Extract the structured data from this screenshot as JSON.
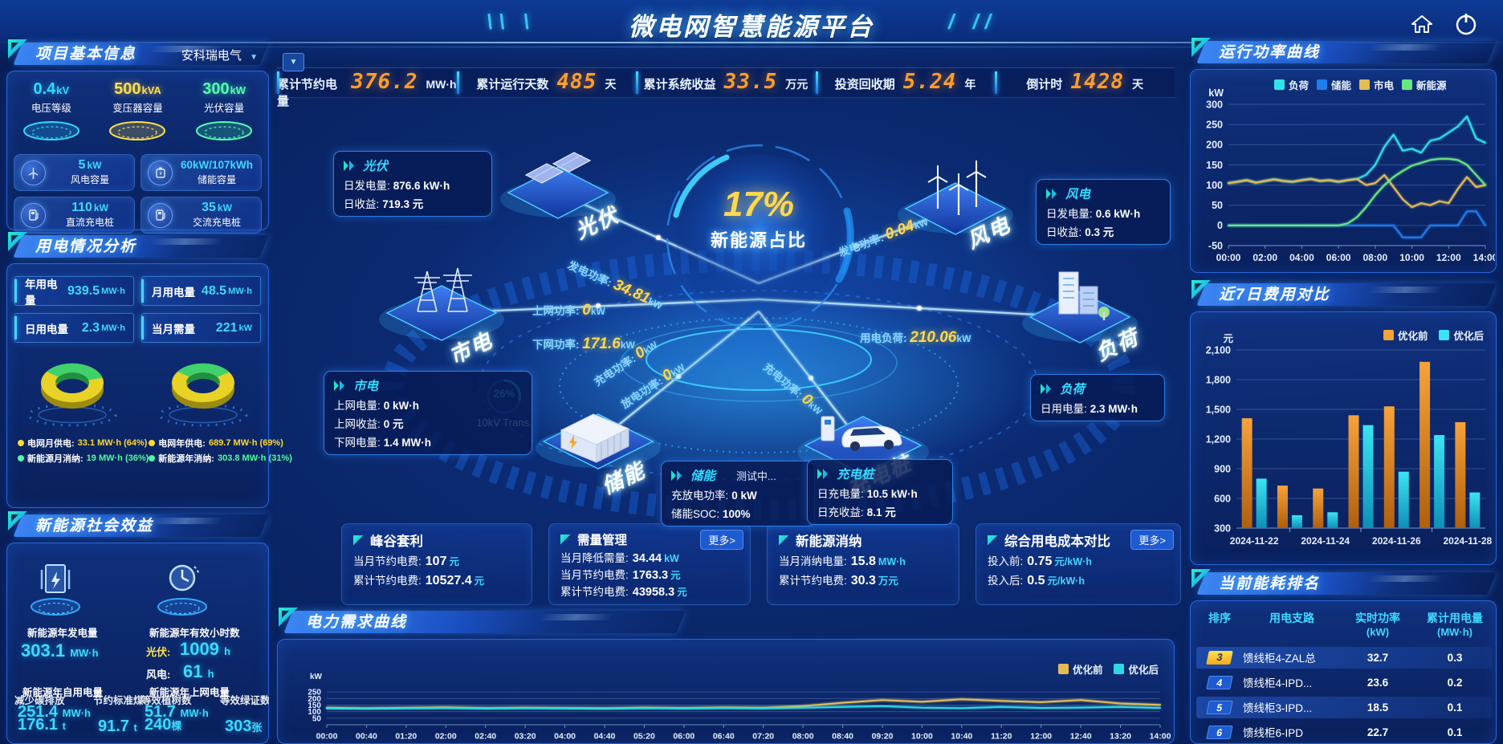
{
  "header": {
    "title": "微电网智慧能源平台",
    "deco_left": "\\\\ \\",
    "deco_right": "/ //"
  },
  "topbar": {
    "collapse_icon": "▼",
    "stats": [
      {
        "label": "累计节约电量",
        "value": "376.2",
        "unit": "MW·h"
      },
      {
        "label": "累计运行天数",
        "value": "485",
        "unit": "天"
      },
      {
        "label": "累计系统收益",
        "value": "33.5",
        "unit": "万元"
      },
      {
        "label": "投资回收期",
        "value": "5.24",
        "unit": "年"
      },
      {
        "label": "倒计时",
        "value": "1428",
        "unit": "天"
      }
    ]
  },
  "project": {
    "title": "项目基本信息",
    "company": "安科瑞电气",
    "pedestals": [
      {
        "value": "0.4",
        "unit": "kV",
        "label": "电压等级",
        "color": "#35d9ff"
      },
      {
        "value": "500",
        "unit": "kVA",
        "label": "变压器容量",
        "color": "#ffe14d"
      },
      {
        "value": "300",
        "unit": "kW",
        "label": "光伏容量",
        "color": "#59ffb0"
      }
    ],
    "cards": [
      {
        "value": "5",
        "unit": "kW",
        "label": "风电容量"
      },
      {
        "value": "60kW/107kWh",
        "unit": "",
        "label": "储能容量"
      },
      {
        "value": "110",
        "unit": "kW",
        "label": "直流充电桩"
      },
      {
        "value": "35",
        "unit": "kW",
        "label": "交流充电桩"
      }
    ]
  },
  "usage": {
    "title": "用电情况分析",
    "stats": [
      {
        "label": "年用电量",
        "value": "939.5",
        "unit": "MW·h"
      },
      {
        "label": "月用电量",
        "value": "48.5",
        "unit": "MW·h"
      },
      {
        "label": "日用电量",
        "value": "2.3",
        "unit": "MW·h"
      },
      {
        "label": "当月需量",
        "value": "221",
        "unit": "kW"
      }
    ],
    "legend": [
      {
        "label": "电网月供电:",
        "value": "33.1 MW·h (64%)",
        "color": "#ffd92b"
      },
      {
        "label": "新能源月消纳:",
        "value": "19 MW·h (36%)",
        "color": "#4dffa1"
      },
      {
        "label": "电网年供电:",
        "value": "689.7 MW·h (69%)",
        "color": "#ffd92b"
      },
      {
        "label": "新能源年消纳:",
        "value": "303.8 MW·h (31%)",
        "color": "#4dffa1"
      }
    ]
  },
  "social": {
    "title": "新能源社会效益",
    "gen_label": "新能源年发电量",
    "gen_value": "303.1",
    "gen_unit": "MW·h",
    "hours_label": "新能源年有效小时数",
    "pv_k": "光伏:",
    "pv_v": "1009",
    "pv_u": "h",
    "wind_k": "风电:",
    "wind_v": "61",
    "wind_u": "h",
    "left_overlay": {
      "label1": "新能源年自用电量",
      "value1": "251.4",
      "unit1": "MW·h",
      "label2": "减少碳排放",
      "value2": "176.1",
      "unit2": "t",
      "label3": "节约标准煤",
      "value3": "91.7",
      "unit3": "t"
    },
    "right_overlay": {
      "label1": "新能源年上网电量",
      "value1": "51.7",
      "unit1": "MW·h",
      "label2": "等效植树数",
      "value2": "240",
      "unit2": "棵",
      "label3": "等效绿证数",
      "value3": "303",
      "unit3": "张"
    }
  },
  "diagram": {
    "center_pct": "17%",
    "center_label": "新能源占比",
    "gauge_value": "26%",
    "gauge_label": "10kV Trans.",
    "nodes": [
      {
        "name": "光伏"
      },
      {
        "name": "风电"
      },
      {
        "name": "市电"
      },
      {
        "name": "负荷"
      },
      {
        "name": "储能"
      },
      {
        "name": "充电桩"
      }
    ],
    "flows": [
      {
        "label": "发电功率:",
        "value": "34.81",
        "unit": "kW"
      },
      {
        "label": "上网功率:",
        "value": "0",
        "unit": "kW"
      },
      {
        "label": "下网功率:",
        "value": "171.6",
        "unit": "kW"
      },
      {
        "label": "发电功率:",
        "value": "0.04",
        "unit": "kW"
      },
      {
        "label": "用电负荷:",
        "value": "210.06",
        "unit": "kW"
      },
      {
        "label": "充电功率:",
        "value": "0",
        "unit": "kW"
      },
      {
        "label": "放电功率:",
        "value": "0",
        "unit": "kW"
      },
      {
        "label": "充电功率:",
        "value": "0",
        "unit": "kW"
      }
    ],
    "boxes": {
      "pv": {
        "title": "光伏",
        "lines": [
          {
            "k": "日发电量:",
            "v": "876.6 kW·h"
          },
          {
            "k": "日收益:",
            "v": "719.3 元"
          }
        ]
      },
      "wind": {
        "title": "风电",
        "lines": [
          {
            "k": "日发电量:",
            "v": "0.6 kW·h"
          },
          {
            "k": "日收益:",
            "v": "0.3 元"
          }
        ]
      },
      "grid": {
        "title": "市电",
        "lines": [
          {
            "k": "上网电量:",
            "v": "0 kW·h"
          },
          {
            "k": "上网收益:",
            "v": "0 元"
          },
          {
            "k": "下网电量:",
            "v": "1.4 MW·h"
          }
        ]
      },
      "load": {
        "title": "负荷",
        "lines": [
          {
            "k": "日用电量:",
            "v": "2.3 MW·h"
          }
        ]
      },
      "storage": {
        "title": "储能",
        "badge": "测试中...",
        "lines": [
          {
            "k": "充放电功率:",
            "v": "0 kW"
          },
          {
            "k": "储能SOC:",
            "v": "100%"
          }
        ]
      },
      "charger": {
        "title": "充电桩",
        "lines": [
          {
            "k": "日充电量:",
            "v": "10.5 kW·h"
          },
          {
            "k": "日充收益:",
            "v": "8.1 元"
          }
        ]
      }
    }
  },
  "mini_panels": [
    {
      "title": "峰谷套利",
      "more": "",
      "lines": [
        {
          "k": "当月节约电费:",
          "v": "107",
          "u": "元"
        },
        {
          "k": "累计节约电费:",
          "v": "10527.4",
          "u": "元"
        }
      ]
    },
    {
      "title": "需量管理",
      "more": "更多>",
      "lines": [
        {
          "k": "当月降低需量:",
          "v": "34.44",
          "u": "kW"
        },
        {
          "k": "当月节约电费:",
          "v": "1763.3",
          "u": "元"
        },
        {
          "k": "累计节约电费:",
          "v": "43958.3",
          "u": "元"
        }
      ]
    },
    {
      "title": "新能源消纳",
      "more": "",
      "lines": [
        {
          "k": "当月消纳电量:",
          "v": "15.8",
          "u": "MW·h"
        },
        {
          "k": "累计节约电费:",
          "v": "30.3",
          "u": "万元"
        }
      ]
    },
    {
      "title": "综合用电成本对比",
      "more": "更多>",
      "lines": [
        {
          "k": "投入前:",
          "v": "0.75",
          "u": "元/kW·h"
        },
        {
          "k": "投入后:",
          "v": "0.5",
          "u": "元/kW·h"
        }
      ]
    }
  ],
  "ranking": {
    "title": "当前能耗排名",
    "headers": [
      {
        "t": "排序",
        "s": ""
      },
      {
        "t": "用电支路",
        "s": ""
      },
      {
        "t": "实时功率",
        "s": "(kW)"
      },
      {
        "t": "累计用电量",
        "s": "(MW·h)"
      }
    ],
    "rows": [
      {
        "rank": "3",
        "style": "gold",
        "branch": "馈线柜4-ZAL总",
        "power": "32.7",
        "energy": "0.3",
        "highlight": true
      },
      {
        "rank": "4",
        "style": "blue",
        "branch": "馈线柜4-IPD...",
        "power": "23.6",
        "energy": "0.2",
        "highlight": false
      },
      {
        "rank": "5",
        "style": "blue",
        "branch": "馈线柜3-IPD...",
        "power": "18.5",
        "energy": "0.1",
        "highlight": true
      },
      {
        "rank": "6",
        "style": "blue",
        "branch": "馈线柜6-IPD",
        "power": "22.7",
        "energy": "0.1",
        "highlight": false
      }
    ]
  },
  "chart_data": [
    {
      "id": "power_curve",
      "type": "line",
      "title": "运行功率曲线",
      "ylabel": "kW",
      "ylim": [
        -50,
        300
      ],
      "yticks": [
        300,
        250,
        200,
        150,
        100,
        50,
        0,
        -50
      ],
      "x_labels": [
        "00:00",
        "02:00",
        "04:00",
        "06:00",
        "08:00",
        "10:00",
        "12:00",
        "14:00"
      ],
      "legend_position": "top",
      "grid": true,
      "series": [
        {
          "name": "负荷",
          "color": "#2fe3ea",
          "values": [
            105,
            108,
            112,
            106,
            110,
            114,
            110,
            108,
            112,
            115,
            110,
            112,
            108,
            112,
            115,
            125,
            150,
            195,
            225,
            185,
            190,
            180,
            210,
            215,
            230,
            245,
            270,
            215,
            205
          ]
        },
        {
          "name": "储能",
          "color": "#1f7df0",
          "values": [
            0,
            0,
            0,
            0,
            0,
            0,
            0,
            0,
            0,
            0,
            0,
            0,
            0,
            0,
            0,
            0,
            0,
            0,
            0,
            -30,
            -30,
            -30,
            0,
            0,
            0,
            0,
            35,
            35,
            0
          ]
        },
        {
          "name": "市电",
          "color": "#e3bc55",
          "values": [
            105,
            108,
            112,
            106,
            110,
            114,
            110,
            108,
            112,
            115,
            110,
            112,
            108,
            112,
            115,
            100,
            105,
            125,
            95,
            65,
            45,
            55,
            50,
            60,
            55,
            90,
            120,
            95,
            100
          ]
        },
        {
          "name": "新能源",
          "color": "#68e87f",
          "values": [
            0,
            0,
            0,
            0,
            0,
            0,
            0,
            0,
            0,
            0,
            0,
            0,
            0,
            5,
            20,
            45,
            75,
            100,
            120,
            135,
            148,
            155,
            162,
            165,
            165,
            162,
            150,
            125,
            100
          ]
        }
      ]
    },
    {
      "id": "cost7",
      "type": "bar",
      "title": "近7日费用对比",
      "ylabel": "元",
      "ylim": [
        300,
        2100
      ],
      "yticks": [
        2100,
        1800,
        1500,
        1200,
        900,
        600,
        300
      ],
      "categories": [
        "2024-11-22",
        "2024-11-23",
        "2024-11-24",
        "2024-11-25",
        "2024-11-26",
        "2024-11-27",
        "2024-11-28"
      ],
      "x_tick_labels": [
        "2024-11-22",
        "2024-11-24",
        "2024-11-26",
        "2024-11-28"
      ],
      "legend_position": "top-right",
      "grid": true,
      "series": [
        {
          "name": "优化前",
          "color": "#f7a23a",
          "color2": "#b05f0e",
          "values": [
            1410,
            730,
            700,
            1440,
            1530,
            1980,
            1370
          ]
        },
        {
          "name": "优化后",
          "color": "#3ae4f2",
          "color2": "#0e8fb8",
          "values": [
            800,
            430,
            460,
            1340,
            870,
            1240,
            660
          ]
        }
      ]
    },
    {
      "id": "demand",
      "type": "line",
      "title": "电力需求曲线",
      "ylabel": "kW",
      "ylim": [
        0,
        300
      ],
      "yticks": [
        250,
        200,
        150,
        100,
        50
      ],
      "x_labels": [
        "00:00",
        "00:40",
        "01:20",
        "02:00",
        "02:40",
        "03:20",
        "04:00",
        "04:40",
        "05:20",
        "06:00",
        "06:40",
        "07:20",
        "08:00",
        "08:40",
        "09:20",
        "10:00",
        "10:40",
        "11:20",
        "12:00",
        "12:40",
        "13:20",
        "14:00"
      ],
      "legend_position": "top-right",
      "grid": true,
      "series": [
        {
          "name": "优化前",
          "color": "#e3bc55",
          "values": [
            130,
            126,
            129,
            133,
            127,
            130,
            128,
            126,
            131,
            128,
            132,
            130,
            142,
            168,
            188,
            175,
            195,
            182,
            172,
            188,
            162,
            152
          ]
        },
        {
          "name": "优化后",
          "color": "#2fd9e0",
          "values": [
            124,
            121,
            125,
            127,
            123,
            126,
            124,
            121,
            126,
            124,
            127,
            125,
            130,
            136,
            142,
            130,
            126,
            136,
            128,
            131,
            136,
            128
          ]
        }
      ]
    },
    {
      "id": "donut_month",
      "type": "pie",
      "labels": [
        "电网月供电",
        "新能源月消纳"
      ],
      "values": [
        64,
        36
      ],
      "colors": [
        "#e8d226",
        "#3fd26a"
      ]
    },
    {
      "id": "donut_year",
      "type": "pie",
      "labels": [
        "电网年供电",
        "新能源年消纳"
      ],
      "values": [
        69,
        31
      ],
      "colors": [
        "#e8d226",
        "#3fd26a"
      ]
    }
  ]
}
